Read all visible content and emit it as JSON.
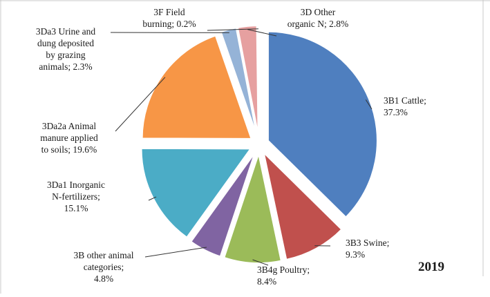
{
  "chart_data": {
    "type": "pie",
    "year": "2019",
    "slices": [
      {
        "name": "3B1 Cattle",
        "value": 37.3,
        "color": "#4f7fbf",
        "label_lines": [
          "3B1 Cattle;",
          "37.3%"
        ]
      },
      {
        "name": "3B3 Swine",
        "value": 9.3,
        "color": "#c0504d",
        "label_lines": [
          "3B3 Swine;",
          "9.3%"
        ]
      },
      {
        "name": "3B4g Poultry",
        "value": 8.4,
        "color": "#9bbb59",
        "label_lines": [
          "3B4g Poultry;",
          "8.4%"
        ]
      },
      {
        "name": "3B other animal categories",
        "value": 4.8,
        "color": "#8064a2",
        "label_lines": [
          "3B other animal",
          "categories;",
          "4.8%"
        ]
      },
      {
        "name": "3Da1 Inorganic N-fertilizers",
        "value": 15.1,
        "color": "#4bacc6",
        "label_lines": [
          "3Da1 Inorganic",
          "N-fertilizers;",
          "15.1%"
        ]
      },
      {
        "name": "3Da2a Animal manure applied to soils",
        "value": 19.6,
        "color": "#f79646",
        "label_lines": [
          "3Da2a Animal",
          "manure applied",
          "to soils; 19.6%"
        ]
      },
      {
        "name": "3Da3 Urine and dung deposited by grazing animals",
        "value": 2.3,
        "color": "#95b3d7",
        "label_lines": [
          "3Da3 Urine and",
          "dung deposited",
          "by grazing",
          "animals; 2.3%"
        ]
      },
      {
        "name": "3D Other organic N",
        "value": 2.8,
        "color": "#e6a0a0",
        "label_lines": [
          "3D Other",
          "organic N; 2.8%"
        ]
      },
      {
        "name": "3F Field burning",
        "value": 0.2,
        "color": "#c2d69b",
        "label_lines": [
          "3F Field",
          "burning; 0.2%"
        ]
      }
    ]
  }
}
